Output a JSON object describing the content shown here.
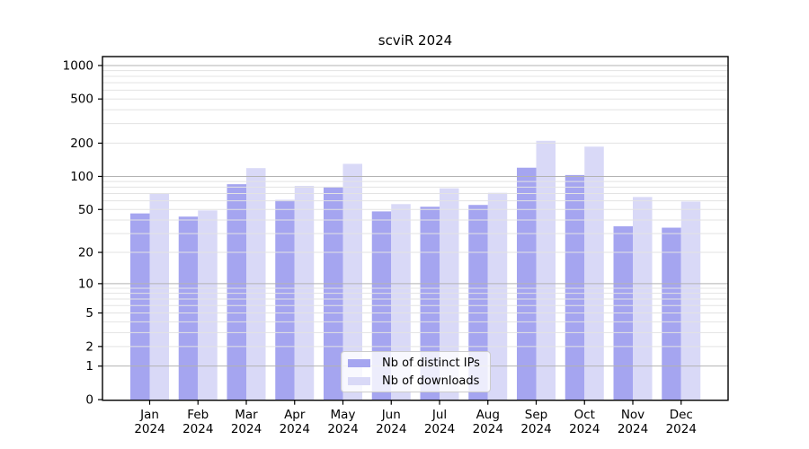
{
  "chart_data": {
    "type": "bar",
    "title": "scviR 2024",
    "categories": [
      "Jan",
      "Feb",
      "Mar",
      "Apr",
      "May",
      "Jun",
      "Jul",
      "Aug",
      "Sep",
      "Oct",
      "Nov",
      "Dec"
    ],
    "year_label": "2024",
    "series": [
      {
        "name": "Nb of distinct IPs",
        "color": "#a5a5f0",
        "values": [
          46,
          43,
          85,
          61,
          80,
          48,
          53,
          55,
          120,
          103,
          35,
          34
        ]
      },
      {
        "name": "Nb of downloads",
        "color": "#d9d9f7",
        "values": [
          70,
          49,
          119,
          82,
          130,
          56,
          78,
          71,
          210,
          186,
          65,
          59
        ]
      }
    ],
    "xlabel": "",
    "ylabel": "",
    "y_scale": "log1p",
    "y_ticks": [
      0,
      1,
      2,
      5,
      10,
      20,
      50,
      100,
      200,
      500,
      1000
    ],
    "ylim": [
      0,
      1200
    ],
    "grid": true,
    "grid_major_values": [
      1,
      10,
      100,
      1000
    ],
    "legend_position": "inside-bottom-center",
    "colors": {
      "major_grid": "#b3b3b3",
      "minor_grid": "#e3e3e3",
      "axis": "#000000",
      "text": "#000000",
      "background": "#ffffff"
    }
  }
}
